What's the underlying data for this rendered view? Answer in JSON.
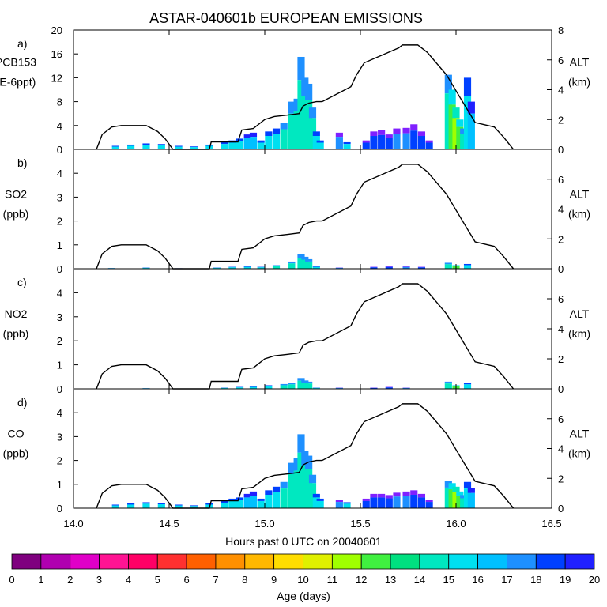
{
  "title": "ASTAR-040601b EUROPEAN EMISSIONS",
  "xlabel": "Hours past 0 UTC on 20040601",
  "colorbar": {
    "label": "Age (days)",
    "ticks": [
      "0",
      "1",
      "2",
      "3",
      "4",
      "5",
      "6",
      "7",
      "8",
      "9",
      "10",
      "11",
      "12",
      "13",
      "14",
      "15",
      "16",
      "17",
      "18",
      "19",
      "20"
    ],
    "colors": [
      "#7f007f",
      "#b000b0",
      "#e000c8",
      "#ff1493",
      "#ff0066",
      "#ff3030",
      "#ff6000",
      "#ff9000",
      "#ffb800",
      "#ffdd00",
      "#e0f000",
      "#a0ff00",
      "#40f040",
      "#00e080",
      "#00e8c0",
      "#00e0f0",
      "#00c0ff",
      "#1e90ff",
      "#0040ff",
      "#2020ff",
      "#8020ff"
    ]
  },
  "chart_data": [
    {
      "type": "bar",
      "panel": "a)",
      "ylabel_lines": [
        "PCB153",
        "(E-6ppt)"
      ],
      "y2label_lines": [
        "ALT",
        "(km)"
      ],
      "xlim": [
        14.0,
        16.5
      ],
      "ylim": [
        0,
        20
      ],
      "yticks": [
        "0",
        "4",
        "8",
        "12",
        "16",
        "20"
      ],
      "y2lim": [
        0,
        8
      ],
      "y2ticks": [
        "0",
        "2",
        "4",
        "6",
        "8"
      ],
      "xticks": [
        "14.0",
        "14.5",
        "15.0",
        "15.5",
        "16.0",
        "16.5"
      ],
      "bars": {
        "x": [
          14.22,
          14.3,
          14.38,
          14.46,
          14.55,
          14.63,
          14.71,
          14.79,
          14.83,
          14.87,
          14.91,
          14.94,
          14.98,
          15.02,
          15.06,
          15.1,
          15.14,
          15.17,
          15.19,
          15.21,
          15.23,
          15.25,
          15.27,
          15.29,
          15.39,
          15.43,
          15.53,
          15.57,
          15.61,
          15.65,
          15.69,
          15.74,
          15.78,
          15.82,
          15.86,
          15.96,
          15.98,
          16.0,
          16.02,
          16.04,
          16.06,
          16.08
        ],
        "values": [
          0.6,
          0.8,
          1.0,
          0.9,
          0.6,
          0.5,
          0.8,
          1.2,
          1.5,
          1.8,
          2.5,
          2.8,
          1.5,
          3.0,
          3.5,
          4.5,
          8.0,
          8.5,
          15.5,
          12.0,
          11.0,
          7.0,
          3.0,
          1.5,
          2.8,
          1.2,
          1.5,
          3.0,
          3.2,
          2.5,
          3.5,
          3.6,
          4.2,
          3.0,
          1.5,
          12.5,
          10.0,
          7.0,
          5.0,
          3.5,
          12.0,
          8.0
        ],
        "age_days": [
          15,
          15,
          15,
          15,
          15,
          15,
          15,
          15,
          15,
          15,
          16,
          16,
          15,
          15,
          15,
          14,
          14,
          14,
          14,
          14,
          14,
          14,
          15,
          15,
          17,
          15,
          18,
          18,
          18,
          18,
          17,
          17,
          18,
          18,
          18,
          14,
          12,
          11,
          12,
          14,
          15,
          16
        ]
      },
      "altitude_km": {
        "x": [
          14.12,
          14.15,
          14.2,
          14.25,
          14.38,
          14.44,
          14.48,
          14.52,
          14.71,
          14.72,
          14.86,
          14.88,
          14.94,
          15.0,
          15.05,
          15.12,
          15.18,
          15.2,
          15.23,
          15.27,
          15.3,
          15.45,
          15.48,
          15.52,
          15.7,
          15.72,
          15.8,
          15.85,
          15.95,
          16.02,
          16.1,
          16.2,
          16.25,
          16.3
        ],
        "y": [
          0.0,
          1.0,
          1.5,
          1.6,
          1.6,
          1.2,
          0.7,
          0.0,
          0.0,
          0.5,
          0.5,
          1.3,
          1.4,
          2.0,
          2.2,
          2.3,
          2.4,
          2.9,
          3.1,
          3.2,
          3.2,
          4.2,
          5.0,
          5.8,
          6.8,
          7.0,
          7.0,
          6.5,
          5.0,
          3.5,
          1.8,
          1.5,
          0.8,
          0.0
        ]
      }
    },
    {
      "type": "bar",
      "panel": "b)",
      "ylabel_lines": [
        "SO2",
        "(ppb)"
      ],
      "y2label_lines": [
        "ALT",
        "(km)"
      ],
      "xlim": [
        14.0,
        16.5
      ],
      "ylim": [
        0,
        5
      ],
      "yticks": [
        "0",
        "1",
        "2",
        "3",
        "4"
      ],
      "y2lim": [
        0,
        8
      ],
      "y2ticks": [
        "0",
        "2",
        "4",
        "6"
      ],
      "bars": {
        "x": [
          14.2,
          14.38,
          14.55,
          14.75,
          14.83,
          14.91,
          14.98,
          15.06,
          15.14,
          15.19,
          15.21,
          15.23,
          15.27,
          15.39,
          15.57,
          15.65,
          15.74,
          15.82,
          15.96,
          16.0,
          16.06
        ],
        "values": [
          0.03,
          0.05,
          0.02,
          0.05,
          0.08,
          0.1,
          0.08,
          0.15,
          0.3,
          0.6,
          0.5,
          0.4,
          0.1,
          0.05,
          0.08,
          0.1,
          0.1,
          0.08,
          0.25,
          0.15,
          0.2
        ],
        "age_days": [
          15,
          15,
          15,
          15,
          15,
          15,
          15,
          14,
          14,
          14,
          14,
          14,
          15,
          17,
          18,
          18,
          17,
          18,
          14,
          12,
          15
        ]
      },
      "altitude_km": {
        "x": [
          14.12,
          14.15,
          14.2,
          14.25,
          14.38,
          14.44,
          14.48,
          14.52,
          14.71,
          14.72,
          14.86,
          14.88,
          14.94,
          15.0,
          15.05,
          15.12,
          15.18,
          15.2,
          15.23,
          15.27,
          15.3,
          15.45,
          15.48,
          15.52,
          15.7,
          15.72,
          15.8,
          15.85,
          15.95,
          16.02,
          16.1,
          16.2,
          16.25,
          16.3
        ],
        "y": [
          0.0,
          1.0,
          1.5,
          1.6,
          1.6,
          1.2,
          0.7,
          0.0,
          0.0,
          0.5,
          0.5,
          1.3,
          1.4,
          2.0,
          2.2,
          2.3,
          2.4,
          2.9,
          3.1,
          3.2,
          3.2,
          4.2,
          5.0,
          5.8,
          6.8,
          7.0,
          7.0,
          6.5,
          5.0,
          3.5,
          1.8,
          1.5,
          0.8,
          0.0
        ]
      }
    },
    {
      "type": "bar",
      "panel": "c)",
      "ylabel_lines": [
        "NO2",
        "(ppb)"
      ],
      "y2label_lines": [
        "ALT",
        "(km)"
      ],
      "xlim": [
        14.0,
        16.5
      ],
      "ylim": [
        0,
        5
      ],
      "yticks": [
        "0",
        "1",
        "2",
        "3",
        "4"
      ],
      "y2lim": [
        0,
        8
      ],
      "y2ticks": [
        "0",
        "2",
        "4",
        "6"
      ],
      "bars": {
        "x": [
          14.38,
          14.79,
          14.87,
          14.94,
          15.02,
          15.1,
          15.14,
          15.19,
          15.21,
          15.23,
          15.27,
          15.39,
          15.57,
          15.65,
          15.74,
          15.96,
          16.0,
          16.06
        ],
        "values": [
          0.03,
          0.05,
          0.08,
          0.1,
          0.15,
          0.2,
          0.25,
          0.45,
          0.35,
          0.3,
          0.05,
          0.05,
          0.05,
          0.08,
          0.05,
          0.3,
          0.15,
          0.25
        ],
        "age_days": [
          15,
          15,
          15,
          15,
          15,
          14,
          14,
          14,
          14,
          14,
          15,
          17,
          18,
          18,
          17,
          14,
          12,
          15
        ]
      },
      "altitude_km": {
        "x": [
          14.12,
          14.15,
          14.2,
          14.25,
          14.38,
          14.44,
          14.48,
          14.52,
          14.71,
          14.72,
          14.86,
          14.88,
          14.94,
          15.0,
          15.05,
          15.12,
          15.18,
          15.2,
          15.23,
          15.27,
          15.3,
          15.45,
          15.48,
          15.52,
          15.7,
          15.72,
          15.8,
          15.85,
          15.95,
          16.02,
          16.1,
          16.2,
          16.25,
          16.3
        ],
        "y": [
          0.0,
          1.0,
          1.5,
          1.6,
          1.6,
          1.2,
          0.7,
          0.0,
          0.0,
          0.5,
          0.5,
          1.3,
          1.4,
          2.0,
          2.2,
          2.3,
          2.4,
          2.9,
          3.1,
          3.2,
          3.2,
          4.2,
          5.0,
          5.8,
          6.8,
          7.0,
          7.0,
          6.5,
          5.0,
          3.5,
          1.8,
          1.5,
          0.8,
          0.0
        ]
      }
    },
    {
      "type": "bar",
      "panel": "d)",
      "ylabel_lines": [
        "CO",
        "(ppb)"
      ],
      "y2label_lines": [
        "ALT",
        "(km)"
      ],
      "xlim": [
        14.0,
        16.5
      ],
      "ylim": [
        0,
        5
      ],
      "yticks": [
        "0",
        "1",
        "2",
        "3",
        "4"
      ],
      "y2lim": [
        0,
        8
      ],
      "y2ticks": [
        "0",
        "2",
        "4",
        "6"
      ],
      "bars": {
        "x": [
          14.22,
          14.3,
          14.38,
          14.46,
          14.55,
          14.63,
          14.71,
          14.79,
          14.83,
          14.87,
          14.91,
          14.94,
          14.98,
          15.02,
          15.06,
          15.1,
          15.14,
          15.17,
          15.19,
          15.21,
          15.23,
          15.25,
          15.27,
          15.29,
          15.39,
          15.43,
          15.53,
          15.57,
          15.61,
          15.65,
          15.69,
          15.74,
          15.78,
          15.82,
          15.86,
          15.96,
          15.98,
          16.0,
          16.02,
          16.04,
          16.06,
          16.08
        ],
        "values": [
          0.15,
          0.2,
          0.25,
          0.22,
          0.15,
          0.12,
          0.2,
          0.3,
          0.4,
          0.45,
          0.6,
          0.7,
          0.4,
          0.75,
          0.9,
          1.1,
          1.9,
          2.1,
          3.1,
          2.4,
          2.2,
          1.4,
          0.6,
          0.4,
          0.35,
          0.25,
          0.4,
          0.6,
          0.6,
          0.55,
          0.65,
          0.7,
          0.75,
          0.6,
          0.35,
          1.15,
          1.05,
          0.9,
          0.7,
          0.55,
          1.1,
          0.85
        ],
        "age_days": [
          15,
          15,
          15,
          15,
          15,
          15,
          15,
          15,
          15,
          15,
          16,
          16,
          15,
          15,
          15,
          14,
          14,
          14,
          14,
          14,
          14,
          14,
          15,
          15,
          17,
          15,
          18,
          18,
          18,
          18,
          17,
          17,
          18,
          18,
          18,
          14,
          12,
          11,
          12,
          14,
          15,
          16
        ]
      },
      "altitude_km": {
        "x": [
          14.12,
          14.15,
          14.2,
          14.25,
          14.38,
          14.44,
          14.48,
          14.52,
          14.71,
          14.72,
          14.86,
          14.88,
          14.94,
          15.0,
          15.05,
          15.12,
          15.18,
          15.2,
          15.23,
          15.27,
          15.3,
          15.45,
          15.48,
          15.52,
          15.7,
          15.72,
          15.8,
          15.85,
          15.95,
          16.02,
          16.1,
          16.2,
          16.25,
          16.3
        ],
        "y": [
          0.0,
          1.0,
          1.5,
          1.6,
          1.6,
          1.2,
          0.7,
          0.0,
          0.0,
          0.5,
          0.5,
          1.3,
          1.4,
          2.0,
          2.2,
          2.3,
          2.4,
          2.9,
          3.1,
          3.2,
          3.2,
          4.2,
          5.0,
          5.8,
          6.8,
          7.0,
          7.0,
          6.5,
          5.0,
          3.5,
          1.8,
          1.5,
          0.8,
          0.0
        ]
      }
    }
  ]
}
